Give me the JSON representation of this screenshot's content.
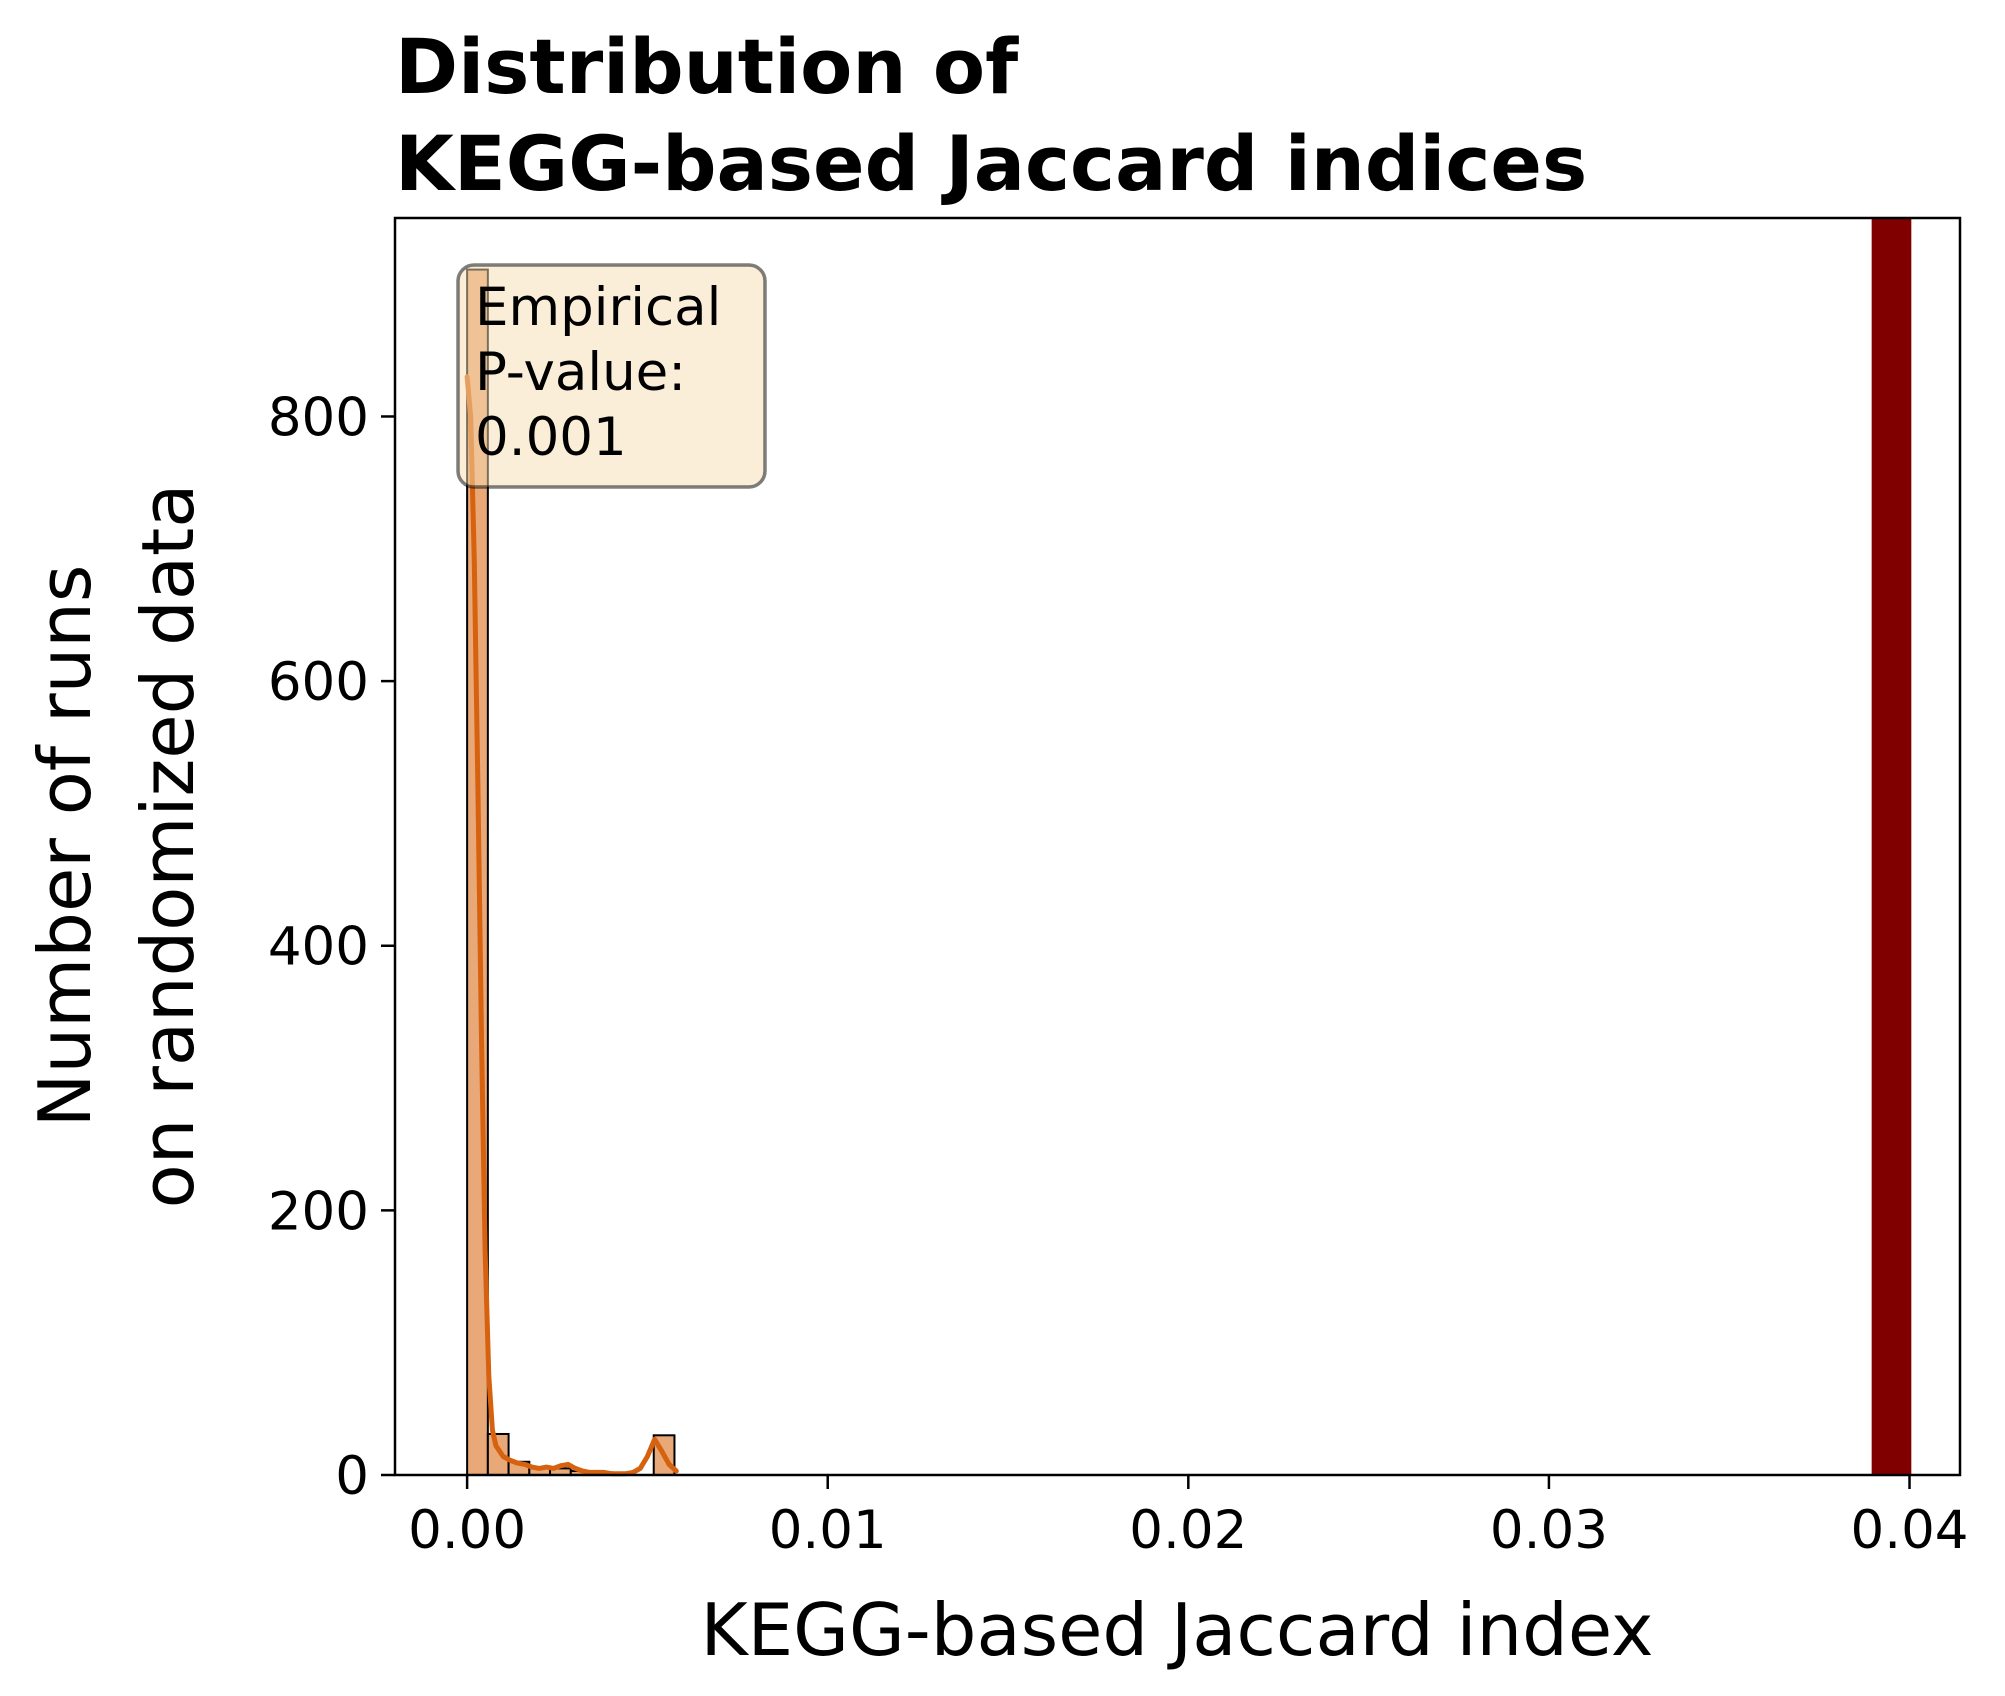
{
  "chart_data": {
    "type": "bar",
    "title_lines": [
      "Distribution of",
      "KEGG-based Jaccard indices"
    ],
    "xlabel": "KEGG-based Jaccard index",
    "ylabel_lines": [
      "Number of runs",
      "on randomized data"
    ],
    "xlim": [
      -0.002,
      0.0414
    ],
    "ylim": [
      0,
      950
    ],
    "x_ticks": [
      0.0,
      0.01,
      0.02,
      0.03,
      0.04
    ],
    "x_tick_labels": [
      "0.00",
      "0.01",
      "0.02",
      "0.03",
      "0.04"
    ],
    "y_ticks": [
      0,
      200,
      400,
      600,
      800
    ],
    "y_tick_labels": [
      "0",
      "200",
      "400",
      "600",
      "800"
    ],
    "grid": false,
    "histogram": {
      "bin_width": 0.000575,
      "bins": [
        {
          "x0": 0.0,
          "count": 911
        },
        {
          "x0": 0.000575,
          "count": 31
        },
        {
          "x0": 0.00115,
          "count": 10
        },
        {
          "x0": 0.001725,
          "count": 6
        },
        {
          "x0": 0.0023,
          "count": 5
        },
        {
          "x0": 0.002875,
          "count": 3
        },
        {
          "x0": 0.00345,
          "count": 2
        },
        {
          "x0": 0.004025,
          "count": 1
        },
        {
          "x0": 0.0046,
          "count": 0
        },
        {
          "x0": 0.005175,
          "count": 30
        }
      ],
      "fill_color": "#e8a878",
      "edge_color": "#000000"
    },
    "kde": {
      "color": "#d6610f",
      "x": [
        0.0,
        0.0001,
        0.0002,
        0.0003,
        0.0004,
        0.0005,
        0.0006,
        0.0007,
        0.0008,
        0.001,
        0.0012,
        0.0014,
        0.0016,
        0.0018,
        0.002,
        0.0022,
        0.0024,
        0.0026,
        0.0028,
        0.003,
        0.0032,
        0.0034,
        0.0036,
        0.0038,
        0.004,
        0.0042,
        0.0044,
        0.0046,
        0.0048,
        0.005,
        0.0052,
        0.0054,
        0.0056,
        0.0058
      ],
      "y": [
        830,
        800,
        690,
        520,
        330,
        170,
        75,
        34,
        22,
        14,
        11,
        9,
        8,
        6,
        5,
        6,
        5,
        7,
        8,
        5,
        3,
        2,
        2,
        2,
        1,
        1,
        1,
        2,
        5,
        14,
        27,
        18,
        8,
        3
      ]
    },
    "observed_value": {
      "x": 0.0395,
      "width": 0.0011,
      "color": "#800000"
    },
    "annotation": {
      "lines": [
        "Empirical",
        "P-value:",
        "0.001"
      ],
      "box_fill": "#f5deb3",
      "position": "top-left"
    }
  }
}
